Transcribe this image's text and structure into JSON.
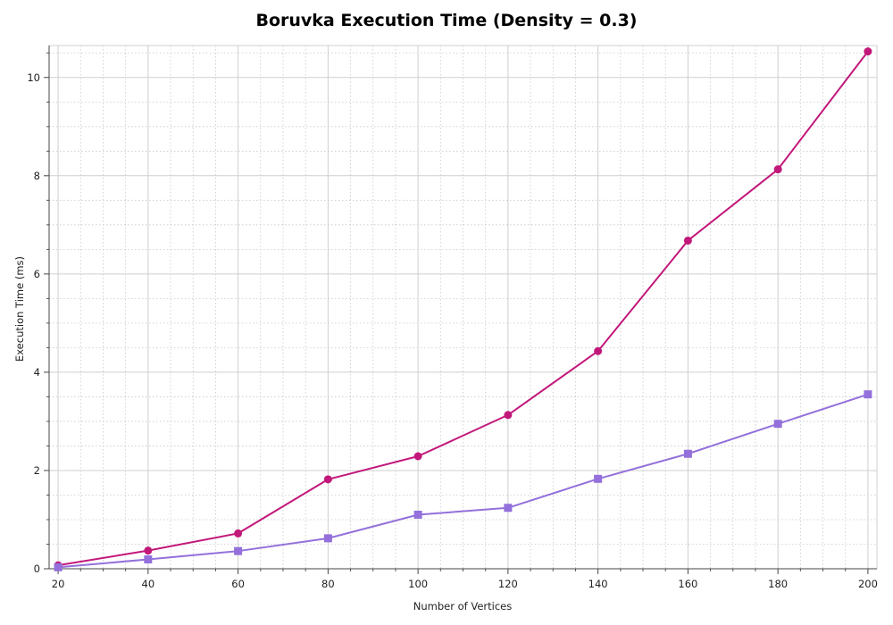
{
  "chart_data": {
    "type": "line",
    "title": "Boruvka Execution Time (Density = 0.3)",
    "xlabel": "Number of Vertices",
    "ylabel": "Execution Time (ms)",
    "x": [
      20,
      40,
      60,
      80,
      100,
      120,
      140,
      160,
      180,
      200
    ],
    "xlim": [
      18,
      202
    ],
    "ylim": [
      0,
      10.65
    ],
    "xticks": [
      20,
      40,
      60,
      80,
      100,
      120,
      140,
      160,
      180,
      200
    ],
    "yticks": [
      0,
      2,
      4,
      6,
      8,
      10
    ],
    "grid": true,
    "series": [
      {
        "values": [
          0.07,
          0.37,
          0.72,
          1.82,
          2.29,
          3.13,
          4.43,
          6.68,
          8.13,
          10.53
        ],
        "color": "#c2187a",
        "marker": "circle"
      },
      {
        "values": [
          0.03,
          0.19,
          0.36,
          0.62,
          1.1,
          1.24,
          1.83,
          2.34,
          2.95,
          3.55
        ],
        "color": "#9370db",
        "marker": "square"
      }
    ]
  }
}
